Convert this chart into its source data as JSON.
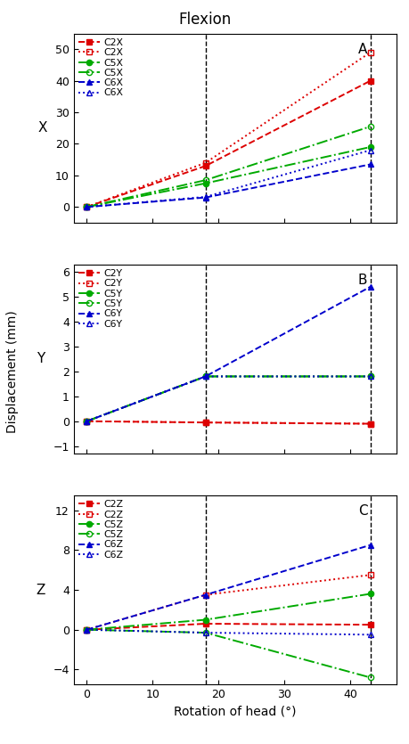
{
  "title": "Flexion",
  "xlabel": "Rotation of head (°)",
  "ylabel_shared": "Displacement (mm)",
  "vlines": [
    18,
    43
  ],
  "x_values": [
    0,
    18,
    43
  ],
  "panel_A": {
    "label": "A",
    "ylabel": "X",
    "ylim": [
      -5,
      55
    ],
    "yticks": [
      0,
      10,
      20,
      30,
      40,
      50
    ],
    "series": {
      "C2X_vert": {
        "color": "#dd0000",
        "marker": "s",
        "filled": true,
        "linestyle": "--",
        "values": [
          0,
          13,
          40
        ]
      },
      "C2X_skin": {
        "color": "#dd0000",
        "marker": "s",
        "filled": false,
        "linestyle": ":",
        "values": [
          0,
          14,
          49
        ]
      },
      "C5X_vert": {
        "color": "#00aa00",
        "marker": "o",
        "filled": true,
        "linestyle": "-.",
        "values": [
          0,
          7.5,
          19
        ]
      },
      "C5X_skin": {
        "color": "#00aa00",
        "marker": "o",
        "filled": false,
        "linestyle": "-.",
        "values": [
          0,
          8.5,
          25.5
        ]
      },
      "C6X_vert": {
        "color": "#0000cc",
        "marker": "^",
        "filled": true,
        "linestyle": "--",
        "values": [
          0,
          3.0,
          13.5
        ]
      },
      "C6X_skin": {
        "color": "#0000cc",
        "marker": "^",
        "filled": false,
        "linestyle": ":",
        "values": [
          0,
          3.2,
          18
        ]
      }
    },
    "legend": [
      {
        "label": "C2X",
        "color": "#dd0000",
        "marker": "s",
        "filled": true,
        "linestyle": "--"
      },
      {
        "label": "C2X",
        "color": "#dd0000",
        "marker": "s",
        "filled": false,
        "linestyle": ":"
      },
      {
        "label": "C5X",
        "color": "#00aa00",
        "marker": "o",
        "filled": true,
        "linestyle": "-."
      },
      {
        "label": "C5X",
        "color": "#00aa00",
        "marker": "o",
        "filled": false,
        "linestyle": "-."
      },
      {
        "label": "C6X",
        "color": "#0000cc",
        "marker": "^",
        "filled": true,
        "linestyle": "--"
      },
      {
        "label": "C6X",
        "color": "#0000cc",
        "marker": "^",
        "filled": false,
        "linestyle": ":"
      }
    ]
  },
  "panel_B": {
    "label": "B",
    "ylabel": "Y",
    "ylim": [
      -1.3,
      6.3
    ],
    "yticks": [
      -1,
      0,
      1,
      2,
      3,
      4,
      5,
      6
    ],
    "series": {
      "C2Y_vert": {
        "color": "#dd0000",
        "marker": "s",
        "filled": true,
        "linestyle": "--",
        "values": [
          0,
          -0.05,
          -0.1
        ]
      },
      "C2Y_skin": {
        "color": "#dd0000",
        "marker": "s",
        "filled": false,
        "linestyle": ":",
        "values": [
          0,
          -0.05,
          -0.1
        ]
      },
      "C5Y_vert": {
        "color": "#00aa00",
        "marker": "o",
        "filled": true,
        "linestyle": "-.",
        "values": [
          0,
          1.8,
          1.8
        ]
      },
      "C5Y_skin": {
        "color": "#00aa00",
        "marker": "o",
        "filled": false,
        "linestyle": "-.",
        "values": [
          0,
          1.8,
          1.8
        ]
      },
      "C6Y_vert": {
        "color": "#0000cc",
        "marker": "^",
        "filled": true,
        "linestyle": "--",
        "values": [
          0,
          1.8,
          5.4
        ]
      },
      "C6Y_skin": {
        "color": "#0000cc",
        "marker": "^",
        "filled": false,
        "linestyle": ":",
        "values": [
          0,
          1.8,
          1.8
        ]
      }
    },
    "legend": [
      {
        "label": "C2Y",
        "color": "#dd0000",
        "marker": "s",
        "filled": true,
        "linestyle": "--"
      },
      {
        "label": "C2Y",
        "color": "#dd0000",
        "marker": "s",
        "filled": false,
        "linestyle": ":"
      },
      {
        "label": "C5Y",
        "color": "#00aa00",
        "marker": "o",
        "filled": true,
        "linestyle": "-."
      },
      {
        "label": "C5Y",
        "color": "#00aa00",
        "marker": "o",
        "filled": false,
        "linestyle": "-."
      },
      {
        "label": "C6Y",
        "color": "#0000cc",
        "marker": "^",
        "filled": true,
        "linestyle": "--"
      },
      {
        "label": "C6Y",
        "color": "#0000cc",
        "marker": "^",
        "filled": false,
        "linestyle": ":"
      }
    ]
  },
  "panel_C": {
    "label": "C",
    "ylabel": "Z",
    "ylim": [
      -5.5,
      13.5
    ],
    "yticks": [
      -4,
      0,
      4,
      8,
      12
    ],
    "series": {
      "C2Z_vert": {
        "color": "#dd0000",
        "marker": "s",
        "filled": true,
        "linestyle": "--",
        "values": [
          0,
          0.6,
          0.5
        ]
      },
      "C2Z_skin": {
        "color": "#dd0000",
        "marker": "s",
        "filled": false,
        "linestyle": ":",
        "values": [
          0,
          3.5,
          5.5
        ]
      },
      "C5Z_vert": {
        "color": "#00aa00",
        "marker": "o",
        "filled": true,
        "linestyle": "-.",
        "values": [
          0,
          1.0,
          3.6
        ]
      },
      "C5Z_skin": {
        "color": "#00aa00",
        "marker": "o",
        "filled": false,
        "linestyle": "-.",
        "values": [
          0,
          -0.3,
          -4.8
        ]
      },
      "C6Z_vert": {
        "color": "#0000cc",
        "marker": "^",
        "filled": true,
        "linestyle": "--",
        "values": [
          0,
          3.5,
          8.5
        ]
      },
      "C6Z_skin": {
        "color": "#0000cc",
        "marker": "^",
        "filled": false,
        "linestyle": ":",
        "values": [
          0,
          -0.3,
          -0.5
        ]
      }
    },
    "legend": [
      {
        "label": "C2Z",
        "color": "#dd0000",
        "marker": "s",
        "filled": true,
        "linestyle": "--"
      },
      {
        "label": "C2Z",
        "color": "#dd0000",
        "marker": "s",
        "filled": false,
        "linestyle": ":"
      },
      {
        "label": "C5Z",
        "color": "#00aa00",
        "marker": "o",
        "filled": true,
        "linestyle": "-."
      },
      {
        "label": "C5Z",
        "color": "#00aa00",
        "marker": "o",
        "filled": false,
        "linestyle": "-."
      },
      {
        "label": "C6Z",
        "color": "#0000cc",
        "marker": "^",
        "filled": true,
        "linestyle": "--"
      },
      {
        "label": "C6Z",
        "color": "#0000cc",
        "marker": "^",
        "filled": false,
        "linestyle": ":"
      }
    ]
  }
}
